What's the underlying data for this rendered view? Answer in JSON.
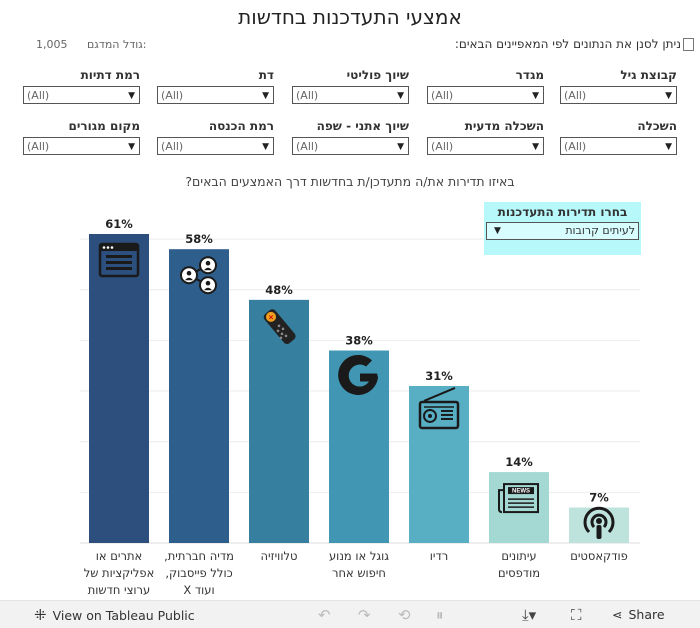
{
  "title": "אמצעי התעדכנות בחדשות",
  "filter_note": "ניתן לסנן את הנתונים לפי המאפיינים הבאים:",
  "sample_size": {
    "label": "גודל המדגם:",
    "value": "1,005"
  },
  "filters": [
    {
      "label": "קבוצת גיל",
      "value": "(All)"
    },
    {
      "label": "מגדר",
      "value": "(All)"
    },
    {
      "label": "שיוך פוליטי",
      "value": "(All)"
    },
    {
      "label": "דת",
      "value": "(All)"
    },
    {
      "label": "רמת דתיות",
      "value": "(All)"
    },
    {
      "label": "השכלה",
      "value": "(All)"
    },
    {
      "label": "השכלה מדעית",
      "value": "(All)"
    },
    {
      "label": "שיוך אתני - שפה",
      "value": "(All)"
    },
    {
      "label": "רמת הכנסה",
      "value": "(All)"
    },
    {
      "label": "מקום מגורים",
      "value": "(All)"
    }
  ],
  "question": "באיזו תדירות את/ה מתעדכן/ת בחדשות דרך האמצעים הבאים?",
  "frequency_selector": {
    "label": "בחרו תדירות התעדכנות",
    "value": "לעיתים קרובות"
  },
  "chart_data": {
    "type": "bar",
    "categories": [
      [
        "אתרים או",
        "אפליקציות של",
        "ערוצי חדשות"
      ],
      [
        "מדיה חברתית,",
        "כולל פייסבוק,",
        "ועוד X"
      ],
      [
        "טלוויזיה"
      ],
      [
        "גוגל או מנוע",
        "חיפוש אחר"
      ],
      [
        "רדיו"
      ],
      [
        "עיתונים",
        "מודפסים"
      ],
      [
        "פודקאסטים"
      ]
    ],
    "values": [
      61,
      58,
      48,
      38,
      31,
      14,
      7
    ],
    "value_suffix": "%",
    "colors": [
      "#2c4f7e",
      "#2e5f8c",
      "#367f9f",
      "#4096b3",
      "#58afc4",
      "#a4d8d2",
      "#bde3dc"
    ],
    "icons": [
      "browser-icon",
      "social-share-icon",
      "tv-remote-icon",
      "google-icon",
      "radio-icon",
      "newspaper-icon",
      "podcast-icon"
    ],
    "ylim": [
      0,
      65
    ],
    "grid": true
  },
  "footer": {
    "tableau_link": "View on Tableau Public",
    "share_label": "Share"
  }
}
